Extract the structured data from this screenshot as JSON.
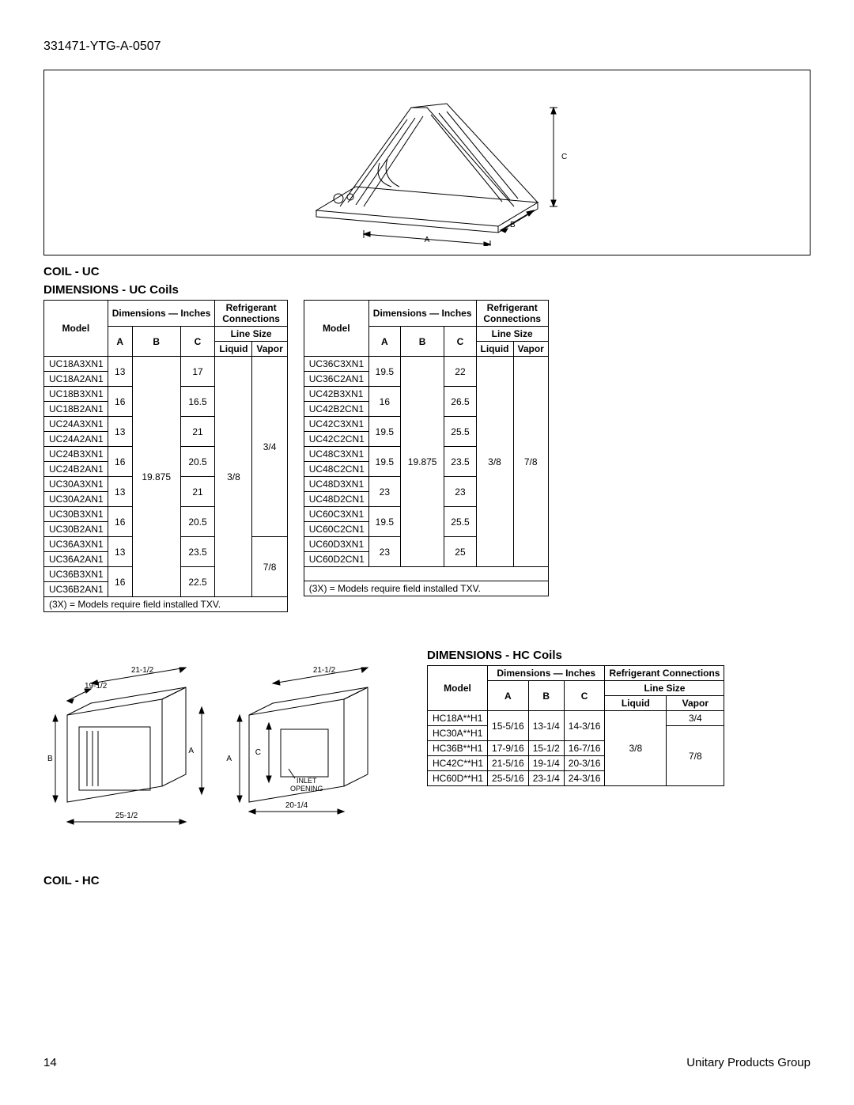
{
  "doc_id": "331471-YTG-A-0507",
  "coil_uc_label": "COIL - UC",
  "coil_hc_label": "COIL - HC",
  "uc_title": "DIMENSIONS - UC Coils",
  "hc_title": "DIMENSIONS - HC Coils",
  "hdr": {
    "model": "Model",
    "dim": "Dimensions — Inches",
    "refr": "Refrigerant",
    "conn": "Connections",
    "refr_conn": "Refrigerant Connections",
    "line_size": "Line Size",
    "A": "A",
    "B": "B",
    "C": "C",
    "liquid": "Liquid",
    "vapor": "Vapor"
  },
  "txv_note": "(3X) = Models require field installed TXV.",
  "uc_left": {
    "B": "19.875",
    "liquid": "3/8",
    "vapor1": "3/4",
    "vapor2": "7/8",
    "groups": [
      {
        "models": [
          "UC18A3XN1",
          "UC18A2AN1"
        ],
        "A": "13",
        "C": "17"
      },
      {
        "models": [
          "UC18B3XN1",
          "UC18B2AN1"
        ],
        "A": "16",
        "C": "16.5"
      },
      {
        "models": [
          "UC24A3XN1",
          "UC24A2AN1"
        ],
        "A": "13",
        "C": "21"
      },
      {
        "models": [
          "UC24B3XN1",
          "UC24B2AN1"
        ],
        "A": "16",
        "C": "20.5"
      },
      {
        "models": [
          "UC30A3XN1",
          "UC30A2AN1"
        ],
        "A": "13",
        "C": "21"
      },
      {
        "models": [
          "UC30B3XN1",
          "UC30B2AN1"
        ],
        "A": "16",
        "C": "20.5"
      },
      {
        "models": [
          "UC36A3XN1",
          "UC36A2AN1"
        ],
        "A": "13",
        "C": "23.5"
      },
      {
        "models": [
          "UC36B3XN1",
          "UC36B2AN1"
        ],
        "A": "16",
        "C": "22.5"
      }
    ]
  },
  "uc_right": {
    "B": "19.875",
    "liquid": "3/8",
    "vapor": "7/8",
    "groups": [
      {
        "models": [
          "UC36C3XN1",
          "UC36C2AN1"
        ],
        "A": "19.5",
        "C": "22"
      },
      {
        "models": [
          "UC42B3XN1",
          "UC42B2CN1"
        ],
        "A": "16",
        "C": "26.5"
      },
      {
        "models": [
          "UC42C3XN1",
          "UC42C2CN1"
        ],
        "A": "19.5",
        "C": "25.5"
      },
      {
        "models": [
          "UC48C3XN1",
          "UC48C2CN1"
        ],
        "A": "19.5",
        "C": "23.5"
      },
      {
        "models": [
          "UC48D3XN1",
          "UC48D2CN1"
        ],
        "A": "23",
        "C": "23"
      },
      {
        "models": [
          "UC60C3XN1",
          "UC60C2CN1"
        ],
        "A": "19.5",
        "C": "25.5"
      },
      {
        "models": [
          "UC60D3XN1",
          "UC60D2CN1"
        ],
        "A": "23",
        "C": "25"
      }
    ]
  },
  "hc": {
    "liquid": "3/8",
    "vapor1": "3/4",
    "vapor2": "7/8",
    "rows": [
      {
        "model": "HC18A**H1",
        "A": "15-5/16",
        "B": "13-1/4",
        "C": "14-3/16"
      },
      {
        "model": "HC30A**H1"
      },
      {
        "model": "HC36B**H1",
        "A": "17-9/16",
        "B": "15-1/2",
        "C": "16-7/16"
      },
      {
        "model": "HC42C**H1",
        "A": "21-5/16",
        "B": "19-1/4",
        "C": "20-3/16"
      },
      {
        "model": "HC60D**H1",
        "A": "25-5/16",
        "B": "23-1/4",
        "C": "24-3/16"
      }
    ]
  },
  "fig_uc": {
    "A": "A",
    "B": "B",
    "C": "C"
  },
  "fig_hc": {
    "A": "A",
    "B": "B",
    "C": "C",
    "inlet": "INLET",
    "opening": "OPENING",
    "d1": "21-1/2",
    "d2": "19-1/2",
    "d3": "25-1/2",
    "d4": "21-1/2",
    "d5": "20-1/4"
  },
  "page_num": "14",
  "footer_right": "Unitary Products Group"
}
